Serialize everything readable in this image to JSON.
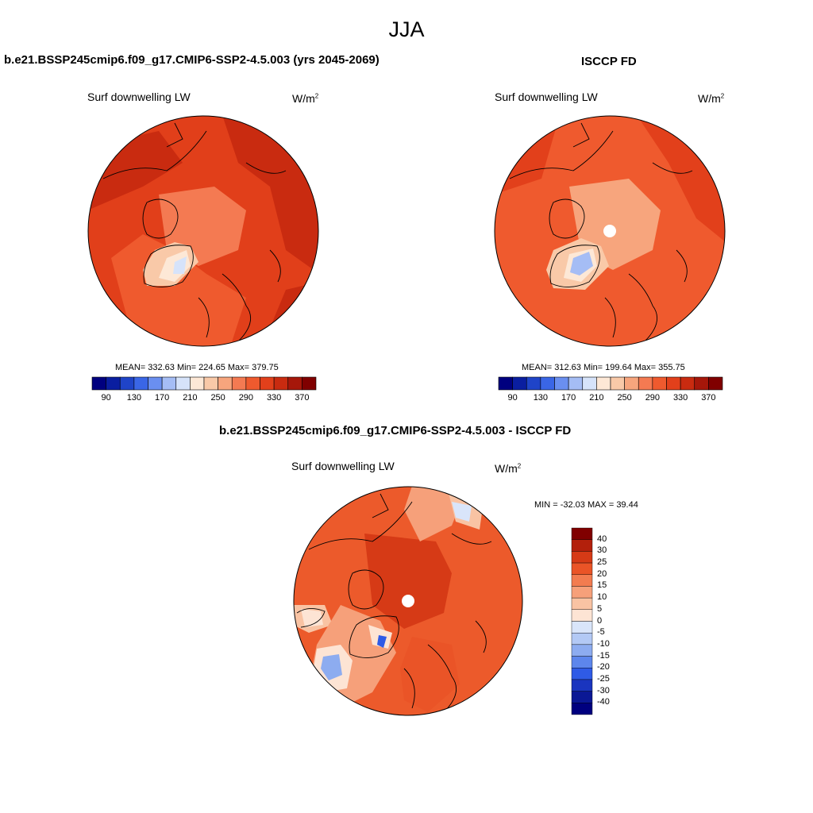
{
  "title": "JJA",
  "field_name": "Surf downwelling LW",
  "units_base": "W/m",
  "units_exp": "2",
  "panel_left": {
    "case": "b.e21.BSSP245cmip6.f09_g17.CMIP6-SSP2-4.5.003 (yrs 2045-2069)",
    "stats": "MEAN= 332.63  Min= 224.65  Max= 379.75"
  },
  "panel_right": {
    "case": "ISCCP FD",
    "stats": "MEAN= 312.63  Min= 199.64  Max= 355.75"
  },
  "panel_diff": {
    "case": "b.e21.BSSP245cmip6.f09_g17.CMIP6-SSP2-4.5.003 - ISCCP FD",
    "stats": "MIN = -32.03 MAX =  39.44"
  },
  "abs_colorbar": {
    "labels": [
      "90",
      "130",
      "170",
      "210",
      "250",
      "290",
      "330",
      "370"
    ],
    "colors": [
      "#00007f",
      "#0a1ea0",
      "#1f44c8",
      "#3a66e6",
      "#6a8ff0",
      "#a5bdf5",
      "#d6e3fa",
      "#fde8d6",
      "#f9c9a8",
      "#f7a57d",
      "#f47a52",
      "#ef5a2e",
      "#e2401b",
      "#c92b10",
      "#a6170a",
      "#800000"
    ]
  },
  "diff_colorbar": {
    "labels": [
      "40",
      "30",
      "25",
      "20",
      "15",
      "10",
      "5",
      "0",
      "-5",
      "-10",
      "-15",
      "-20",
      "-25",
      "-30",
      "-40"
    ],
    "colors": [
      "#800000",
      "#b3200c",
      "#d63a16",
      "#ea5427",
      "#f27c50",
      "#f6a07a",
      "#f9c3a3",
      "#fde4d4",
      "#d9e5fa",
      "#b3c9f5",
      "#8dacf0",
      "#5d86ec",
      "#2f5be6",
      "#1a35bf",
      "#0b1895",
      "#00007f"
    ]
  },
  "map_colors": {
    "ocean_left": "#e13f1a",
    "ocean_right": "#ef5a2e",
    "ocean_diff": "#ec5a2b",
    "coast": "#000000"
  }
}
